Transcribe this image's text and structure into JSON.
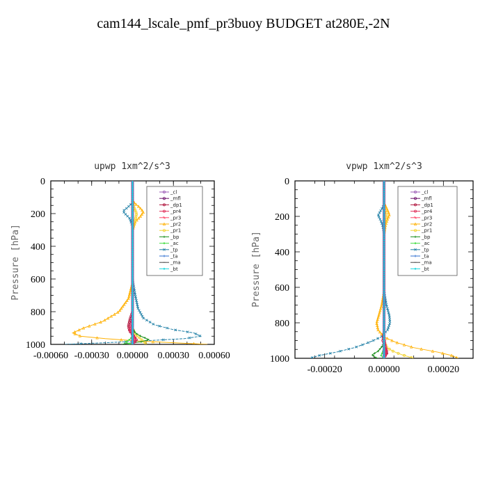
{
  "title": "cam144_lscale_pmf_pr3buoy  BUDGET at280E,-2N",
  "legend_entries": [
    "_cl",
    "_mfl",
    "_dp1",
    "_pr4",
    "_pr3",
    "_pr2",
    "_pr1",
    "_bp",
    "_ac",
    "_tp",
    "_ta",
    "_ma",
    "_bt"
  ],
  "colors": {
    "_cl": "#9b59b6",
    "_mfl": "#6a0d6a",
    "_dp1": "#b0143c",
    "_pr4": "#e0305a",
    "_pr3": "#ff4466",
    "_pr2": "#ffb000",
    "_pr1": "#f2d230",
    "_bp": "#1a8f1a",
    "_ac": "#44dd44",
    "_tp": "#1f7fa6",
    "_ta": "#2f6fd0",
    "_ma": "#444444",
    "_bt": "#18d8e0"
  },
  "chart_data": [
    {
      "type": "line",
      "title": "upwp  1xm^2/s^3",
      "ylabel": "Pressure [hPa]",
      "xlim": [
        -0.0006,
        0.0006
      ],
      "ylim": [
        1000,
        0
      ],
      "xticks": [
        "-0.00060",
        "-0.00030",
        "0.00000",
        "0.00030",
        "0.00060"
      ],
      "xtick_values": [
        -0.0006,
        -0.0003,
        0,
        0.0003,
        0.0006
      ],
      "yticks": [
        "0",
        "200",
        "400",
        "600",
        "800",
        "1000"
      ],
      "ytick_values": [
        0,
        200,
        400,
        600,
        800,
        1000
      ],
      "legend": "top-right",
      "series": [
        {
          "name": "_tp",
          "x": [
            0,
            0,
            -2e-05,
            -4e-05,
            -7e-05,
            -5e-05,
            -2e-05,
            0,
            0,
            2e-05,
            4e-05,
            8e-05,
            0.00016,
            0.0003,
            0.00045,
            0.0005,
            0.00038,
            5e-05,
            -0.0002,
            -0.0005
          ],
          "y": [
            0,
            130,
            150,
            165,
            185,
            205,
            230,
            280,
            600,
            700,
            780,
            840,
            880,
            910,
            930,
            950,
            965,
            980,
            990,
            1000
          ]
        },
        {
          "name": "_pr2",
          "x": [
            0,
            0,
            2e-05,
            5e-05,
            8e-05,
            6e-05,
            2e-05,
            0,
            0,
            -3e-05,
            -0.0001,
            -0.00022,
            -0.00036,
            -0.00044,
            -0.00038,
            -0.0002,
            5e-05,
            0.0003,
            0.00055
          ],
          "y": [
            0,
            120,
            140,
            160,
            190,
            215,
            250,
            300,
            620,
            720,
            800,
            860,
            900,
            930,
            950,
            965,
            980,
            990,
            1000
          ]
        },
        {
          "name": "_pr1",
          "x": [
            0,
            0,
            1e-05,
            3e-05,
            2e-05,
            0,
            0,
            2e-05,
            5e-05,
            8e-05,
            0.0001
          ],
          "y": [
            0,
            130,
            160,
            200,
            240,
            300,
            900,
            940,
            960,
            980,
            1000
          ]
        },
        {
          "name": "_bp",
          "x": [
            0,
            0,
            2e-05,
            6e-05,
            0.00012,
            6e-05,
            -5e-05,
            -8e-05
          ],
          "y": [
            0,
            900,
            930,
            950,
            970,
            985,
            995,
            1000
          ]
        },
        {
          "name": "_ac",
          "x": [
            0,
            0,
            -2e-05,
            -5e-05,
            -3e-05,
            0
          ],
          "y": [
            0,
            950,
            970,
            985,
            995,
            1000
          ]
        },
        {
          "name": "_dp1",
          "x": [
            0,
            0,
            -2e-05,
            -3e-05,
            -2e-05,
            1e-05,
            3e-05,
            0
          ],
          "y": [
            0,
            800,
            850,
            890,
            920,
            950,
            975,
            1000
          ]
        },
        {
          "name": "_pr4",
          "x": [
            0,
            0,
            -1e-05,
            -2e-05,
            0,
            2e-05,
            0
          ],
          "y": [
            0,
            850,
            880,
            910,
            940,
            970,
            1000
          ]
        },
        {
          "name": "_pr3",
          "x": [
            0,
            0,
            -1e-05,
            1e-05,
            0
          ],
          "y": [
            0,
            880,
            920,
            960,
            1000
          ]
        },
        {
          "name": "_mfl",
          "x": [
            0,
            0
          ],
          "y": [
            0,
            1000
          ]
        },
        {
          "name": "_cl",
          "x": [
            0,
            0
          ],
          "y": [
            0,
            1000
          ]
        },
        {
          "name": "_ta",
          "x": [
            0,
            0
          ],
          "y": [
            0,
            1000
          ]
        },
        {
          "name": "_ma",
          "x": [
            0,
            0
          ],
          "y": [
            0,
            1000
          ]
        },
        {
          "name": "_bt",
          "x": [
            0,
            0
          ],
          "y": [
            0,
            1000
          ]
        }
      ]
    },
    {
      "type": "line",
      "title": "vpwp  1xm^2/s^3",
      "ylabel": "Pressure [hPa]",
      "xlim": [
        -0.0003,
        0.0003
      ],
      "ylim": [
        1000,
        0
      ],
      "xticks": [
        "-0.00020",
        "0.00000",
        "0.00020"
      ],
      "xtick_values": [
        -0.0002,
        0,
        0.0002
      ],
      "yticks": [
        "0",
        "200",
        "400",
        "600",
        "800",
        "1000"
      ],
      "ytick_values": [
        0,
        200,
        400,
        600,
        800,
        1000
      ],
      "legend": "top-right",
      "series": [
        {
          "name": "_tp",
          "x": [
            0,
            0,
            -5e-06,
            -1.2e-05,
            -2e-05,
            -1.2e-05,
            -5e-06,
            0,
            0,
            8e-06,
            1.8e-05,
            2e-05,
            1.2e-05,
            -1e-05,
            -5e-05,
            -0.0001,
            -0.00016,
            -0.00022,
            -0.00025
          ],
          "y": [
            0,
            130,
            150,
            170,
            195,
            220,
            250,
            300,
            620,
            700,
            760,
            800,
            840,
            880,
            910,
            940,
            965,
            985,
            1000
          ]
        },
        {
          "name": "_pr2",
          "x": [
            0,
            0,
            5e-06,
            1.2e-05,
            1.8e-05,
            1.2e-05,
            5e-06,
            0,
            0,
            -8e-06,
            -1.8e-05,
            -2.5e-05,
            -2e-05,
            0,
            4e-05,
            0.0001,
            0.00018,
            0.00023,
            0.00025
          ],
          "y": [
            0,
            120,
            140,
            165,
            190,
            215,
            250,
            300,
            620,
            700,
            760,
            800,
            840,
            880,
            910,
            940,
            965,
            985,
            1000
          ]
        },
        {
          "name": "_pr1",
          "x": [
            0,
            0,
            5e-06,
            8e-06,
            4e-06,
            0,
            0,
            1e-05,
            3e-05,
            6e-05,
            0.0001
          ],
          "y": [
            0,
            140,
            170,
            200,
            240,
            300,
            900,
            940,
            960,
            980,
            1000
          ]
        },
        {
          "name": "_bp",
          "x": [
            0,
            0,
            -5e-06,
            -2e-05,
            -4e-05,
            -3e-05,
            -2e-05
          ],
          "y": [
            0,
            900,
            930,
            960,
            980,
            995,
            1000
          ]
        },
        {
          "name": "_ac",
          "x": [
            0,
            0,
            -5e-06,
            -1e-05,
            0
          ],
          "y": [
            0,
            940,
            965,
            985,
            1000
          ]
        },
        {
          "name": "_dp1",
          "x": [
            0,
            0,
            -4e-06,
            6e-06,
            1e-05,
            0
          ],
          "y": [
            0,
            850,
            900,
            940,
            970,
            1000
          ]
        },
        {
          "name": "_pr4",
          "x": [
            0,
            0,
            4e-06,
            8e-06,
            0
          ],
          "y": [
            0,
            880,
            930,
            970,
            1000
          ]
        },
        {
          "name": "_pr3",
          "x": [
            0,
            0,
            3e-06,
            0
          ],
          "y": [
            0,
            900,
            960,
            1000
          ]
        },
        {
          "name": "_mfl",
          "x": [
            0,
            0
          ],
          "y": [
            0,
            1000
          ]
        },
        {
          "name": "_cl",
          "x": [
            0,
            0
          ],
          "y": [
            0,
            1000
          ]
        },
        {
          "name": "_ta",
          "x": [
            0,
            0
          ],
          "y": [
            0,
            1000
          ]
        },
        {
          "name": "_ma",
          "x": [
            0,
            0
          ],
          "y": [
            0,
            1000
          ]
        },
        {
          "name": "_bt",
          "x": [
            0,
            0
          ],
          "y": [
            0,
            1000
          ]
        }
      ]
    }
  ]
}
